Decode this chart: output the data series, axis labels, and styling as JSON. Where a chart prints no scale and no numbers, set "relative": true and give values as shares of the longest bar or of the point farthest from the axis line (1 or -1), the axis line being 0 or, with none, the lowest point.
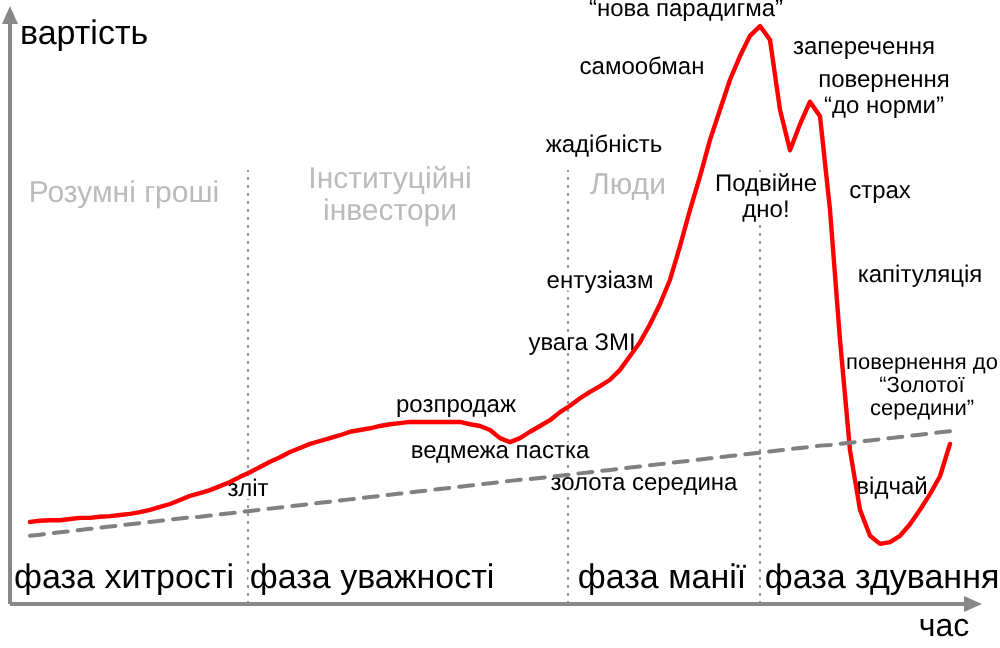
{
  "chart_data": {
    "type": "line",
    "relative": true,
    "xlabel": "час",
    "ylabel": "вартість",
    "categories": [
      null,
      null,
      null,
      null,
      null,
      null,
      null,
      null,
      null,
      null,
      null,
      null,
      null,
      null,
      null,
      null,
      null,
      null,
      null,
      null,
      null,
      null,
      null,
      null,
      null,
      null,
      null,
      null,
      null,
      null,
      null,
      null,
      null,
      null,
      null,
      null,
      null,
      null,
      null,
      null,
      null,
      null,
      null,
      null,
      null,
      null,
      null,
      null,
      null,
      null,
      null,
      null,
      null,
      null,
      null,
      null,
      null,
      null,
      null,
      null,
      null,
      null,
      null,
      null,
      null,
      null,
      null,
      null,
      null,
      null,
      null,
      null,
      null,
      null,
      null,
      null,
      null,
      null,
      null,
      null,
      null,
      null,
      null,
      null,
      null,
      null,
      null,
      null,
      null,
      null,
      null,
      null,
      null
    ],
    "series": [
      {
        "color": "#ff0000",
        "line_style": "solid",
        "values": [
          0.142,
          0.144,
          0.145,
          0.145,
          0.147,
          0.149,
          0.149,
          0.151,
          0.152,
          0.154,
          0.156,
          0.159,
          0.163,
          0.168,
          0.173,
          0.18,
          0.187,
          0.192,
          0.197,
          0.204,
          0.211,
          0.22,
          0.228,
          0.237,
          0.246,
          0.254,
          0.263,
          0.27,
          0.277,
          0.282,
          0.287,
          0.292,
          0.298,
          0.301,
          0.304,
          0.308,
          0.311,
          0.313,
          0.315,
          0.315,
          0.315,
          0.315,
          0.315,
          0.315,
          0.311,
          0.308,
          0.301,
          0.287,
          0.28,
          0.287,
          0.298,
          0.308,
          0.318,
          0.332,
          0.343,
          0.356,
          0.367,
          0.377,
          0.388,
          0.405,
          0.429,
          0.453,
          0.484,
          0.519,
          0.561,
          0.619,
          0.682,
          0.74,
          0.803,
          0.855,
          0.907,
          0.948,
          0.983,
          1,
          0.976,
          0.855,
          0.785,
          0.83,
          0.869,
          0.844,
          0.682,
          0.457,
          0.266,
          0.163,
          0.118,
          0.104,
          0.107,
          0.118,
          0.138,
          0.163,
          0.19,
          0.221,
          0.277
        ]
      },
      {
        "color": "#808080",
        "line_style": "dashed",
        "values": [
          0.118,
          0.12,
          0.122,
          0.124,
          0.126,
          0.128,
          0.13,
          0.132,
          0.134,
          0.136,
          0.138,
          0.14,
          0.142,
          0.144,
          0.146,
          0.148,
          0.15,
          0.151,
          0.153,
          0.155,
          0.157,
          0.159,
          0.161,
          0.163,
          0.165,
          0.167,
          0.169,
          0.171,
          0.173,
          0.175,
          0.177,
          0.179,
          0.181,
          0.183,
          0.185,
          0.187,
          0.189,
          0.191,
          0.193,
          0.195,
          0.197,
          0.199,
          0.201,
          0.203,
          0.205,
          0.207,
          0.209,
          0.211,
          0.213,
          0.215,
          0.216,
          0.218,
          0.22,
          0.222,
          0.224,
          0.226,
          0.228,
          0.23,
          0.232,
          0.234,
          0.236,
          0.238,
          0.24,
          0.242,
          0.244,
          0.246,
          0.248,
          0.25,
          0.252,
          0.254,
          0.256,
          0.258,
          0.26,
          0.262,
          0.264,
          0.266,
          0.268,
          0.27,
          0.272,
          0.274,
          0.275,
          0.277,
          0.279,
          0.281,
          0.283,
          0.285,
          0.287,
          0.289,
          0.291,
          0.293,
          0.295,
          0.297,
          0.299
        ]
      }
    ],
    "annotations": [
      "фаза хитрості",
      "фаза уважності",
      "фаза манії",
      "фаза здування",
      "Розумні гроші",
      "Інституційні\nінвестори",
      "Люди",
      "зліт",
      "розпродаж",
      "ведмежа пастка",
      "золота середина",
      "увага ЗМІ",
      "ентузіазм",
      "жадібність",
      "самообман",
      "“нова парадигма”",
      "заперечення",
      "повернення\n“до норми”",
      "Подвійне\nдно!",
      "страх",
      "капітуляція",
      "повернення до\n“Золотої\nсередини”",
      "відчай"
    ]
  }
}
